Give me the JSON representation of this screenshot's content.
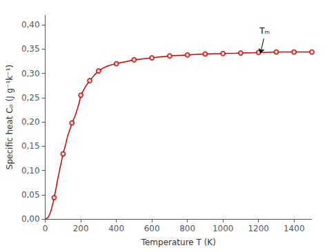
{
  "chart_data": {
    "type": "line",
    "xlabel": "Temperature T (K)",
    "ylabel": "Specific heat Cₚ (J g⁻¹k⁻¹)",
    "xlim": [
      0,
      1500
    ],
    "ylim": [
      0.0,
      0.42
    ],
    "xticks": [
      0,
      200,
      400,
      600,
      800,
      1000,
      1200,
      1400
    ],
    "yticks": [
      {
        "value": 0.0,
        "label": "0,00"
      },
      {
        "value": 0.05,
        "label": "0,05"
      },
      {
        "value": 0.1,
        "label": "0,10"
      },
      {
        "value": 0.15,
        "label": "0,15"
      },
      {
        "value": 0.2,
        "label": "0,20"
      },
      {
        "value": 0.25,
        "label": "0,25"
      },
      {
        "value": 0.3,
        "label": "0,30"
      },
      {
        "value": 0.35,
        "label": "0,35"
      },
      {
        "value": 0.4,
        "label": "0,40"
      }
    ],
    "grid": false,
    "series": [
      {
        "type": "line",
        "color": "#cc0000",
        "line_style": "solid",
        "x": [
          2,
          5,
          8,
          10,
          15,
          20,
          25,
          30,
          35,
          40,
          45,
          50,
          55,
          60,
          65,
          70,
          75,
          80,
          90,
          100,
          115,
          125,
          140,
          150,
          165,
          175,
          190,
          200,
          225,
          250,
          275,
          300,
          325,
          350,
          375,
          400,
          425,
          450,
          475,
          500,
          525,
          550,
          575,
          600,
          625,
          650,
          675,
          700,
          725,
          750,
          775,
          800,
          825,
          850,
          875,
          900,
          925,
          950,
          975,
          1000,
          1025,
          1050,
          1075,
          1100,
          1125,
          1150,
          1175,
          1200,
          1211,
          1225,
          1250,
          1275,
          1300,
          1325,
          1350,
          1375,
          1400,
          1425,
          1450,
          1475,
          1500
        ],
        "values": [
          0.0001,
          0.0004,
          0.001,
          0.0015,
          0.003,
          0.006,
          0.01,
          0.015,
          0.021,
          0.028,
          0.035,
          0.044,
          0.053,
          0.062,
          0.072,
          0.082,
          0.09,
          0.1,
          0.117,
          0.134,
          0.154,
          0.17,
          0.186,
          0.198,
          0.21,
          0.22,
          0.238,
          0.255,
          0.272,
          0.285,
          0.296,
          0.305,
          0.311,
          0.315,
          0.318,
          0.32,
          0.322,
          0.324,
          0.326,
          0.328,
          0.329,
          0.33,
          0.331,
          0.332,
          0.333,
          0.334,
          0.335,
          0.336,
          0.3365,
          0.337,
          0.3375,
          0.338,
          0.3385,
          0.339,
          0.3395,
          0.34,
          0.3402,
          0.3404,
          0.3406,
          0.341,
          0.3412,
          0.3414,
          0.3416,
          0.342,
          0.3422,
          0.3424,
          0.3426,
          0.343,
          0.344,
          0.3432,
          0.3434,
          0.3436,
          0.3438,
          0.344,
          0.344,
          0.344,
          0.344,
          0.344,
          0.344,
          0.344,
          0.344
        ]
      },
      {
        "type": "scatter",
        "color": "#cc0000",
        "marker": "open circle",
        "x": [
          50,
          100,
          150,
          200,
          250,
          300,
          400,
          500,
          600,
          700,
          800,
          900,
          1000,
          1100,
          1200,
          1300,
          1400,
          1500
        ],
        "values": [
          0.044,
          0.134,
          0.198,
          0.255,
          0.285,
          0.305,
          0.32,
          0.328,
          0.332,
          0.336,
          0.338,
          0.34,
          0.341,
          0.342,
          0.343,
          0.344,
          0.344,
          0.344
        ]
      }
    ],
    "annotations": [
      {
        "text": "Tₘ",
        "x": 1211,
        "y": 0.341,
        "text_x": 1230,
        "text_y": 0.372
      }
    ]
  }
}
